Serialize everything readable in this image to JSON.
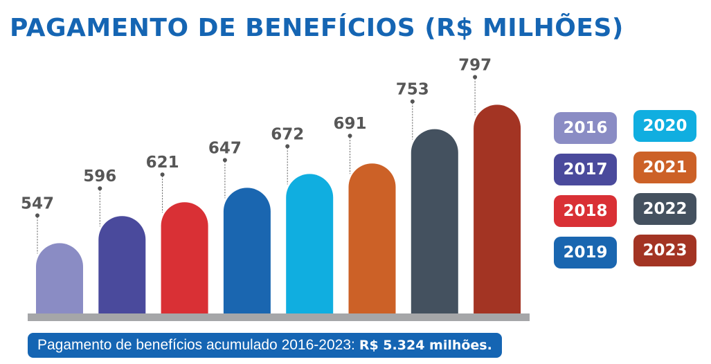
{
  "title": "PAGAMENTO DE BENEFÍCIOS (R$ MILHÕES)",
  "chart_data": {
    "type": "bar",
    "title": "PAGAMENTO DE BENEFÍCIOS (R$ MILHÕES)",
    "categories": [
      "2016",
      "2017",
      "2018",
      "2019",
      "2020",
      "2021",
      "2022",
      "2023"
    ],
    "values": [
      547,
      596,
      621,
      647,
      672,
      691,
      753,
      797
    ],
    "colors": [
      "#8a8cc4",
      "#4a4a9c",
      "#d93035",
      "#1a66b0",
      "#10aee0",
      "#cc6127",
      "#44515f",
      "#a33423"
    ],
    "ylim": [
      420,
      820
    ],
    "legend_placement": "right",
    "grid": false
  },
  "footer": {
    "text": "Pagamento de benefícios acumulado 2016-2023:",
    "highlight": "R$ 5.324 milhões."
  }
}
